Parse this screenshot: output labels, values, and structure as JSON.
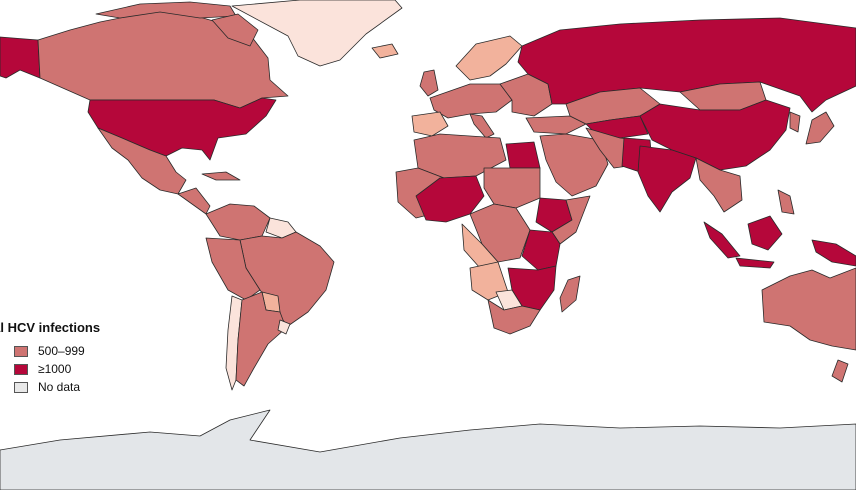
{
  "legend": {
    "title": "tical HCV infections",
    "items": [
      {
        "label": "500–999",
        "color": "#cf7472"
      },
      {
        "label": "≥1000",
        "color": "#b5073a"
      },
      {
        "label": "No data",
        "color": "#e8e8e8"
      }
    ]
  },
  "colors": {
    "high": "#b5073a",
    "mid": "#cf7472",
    "low": "#f2b29c",
    "lowest": "#fbe3db",
    "nodata": "#e8e8e8",
    "antarctica": "#e3e6e9",
    "border": "#2a2a2a"
  }
}
